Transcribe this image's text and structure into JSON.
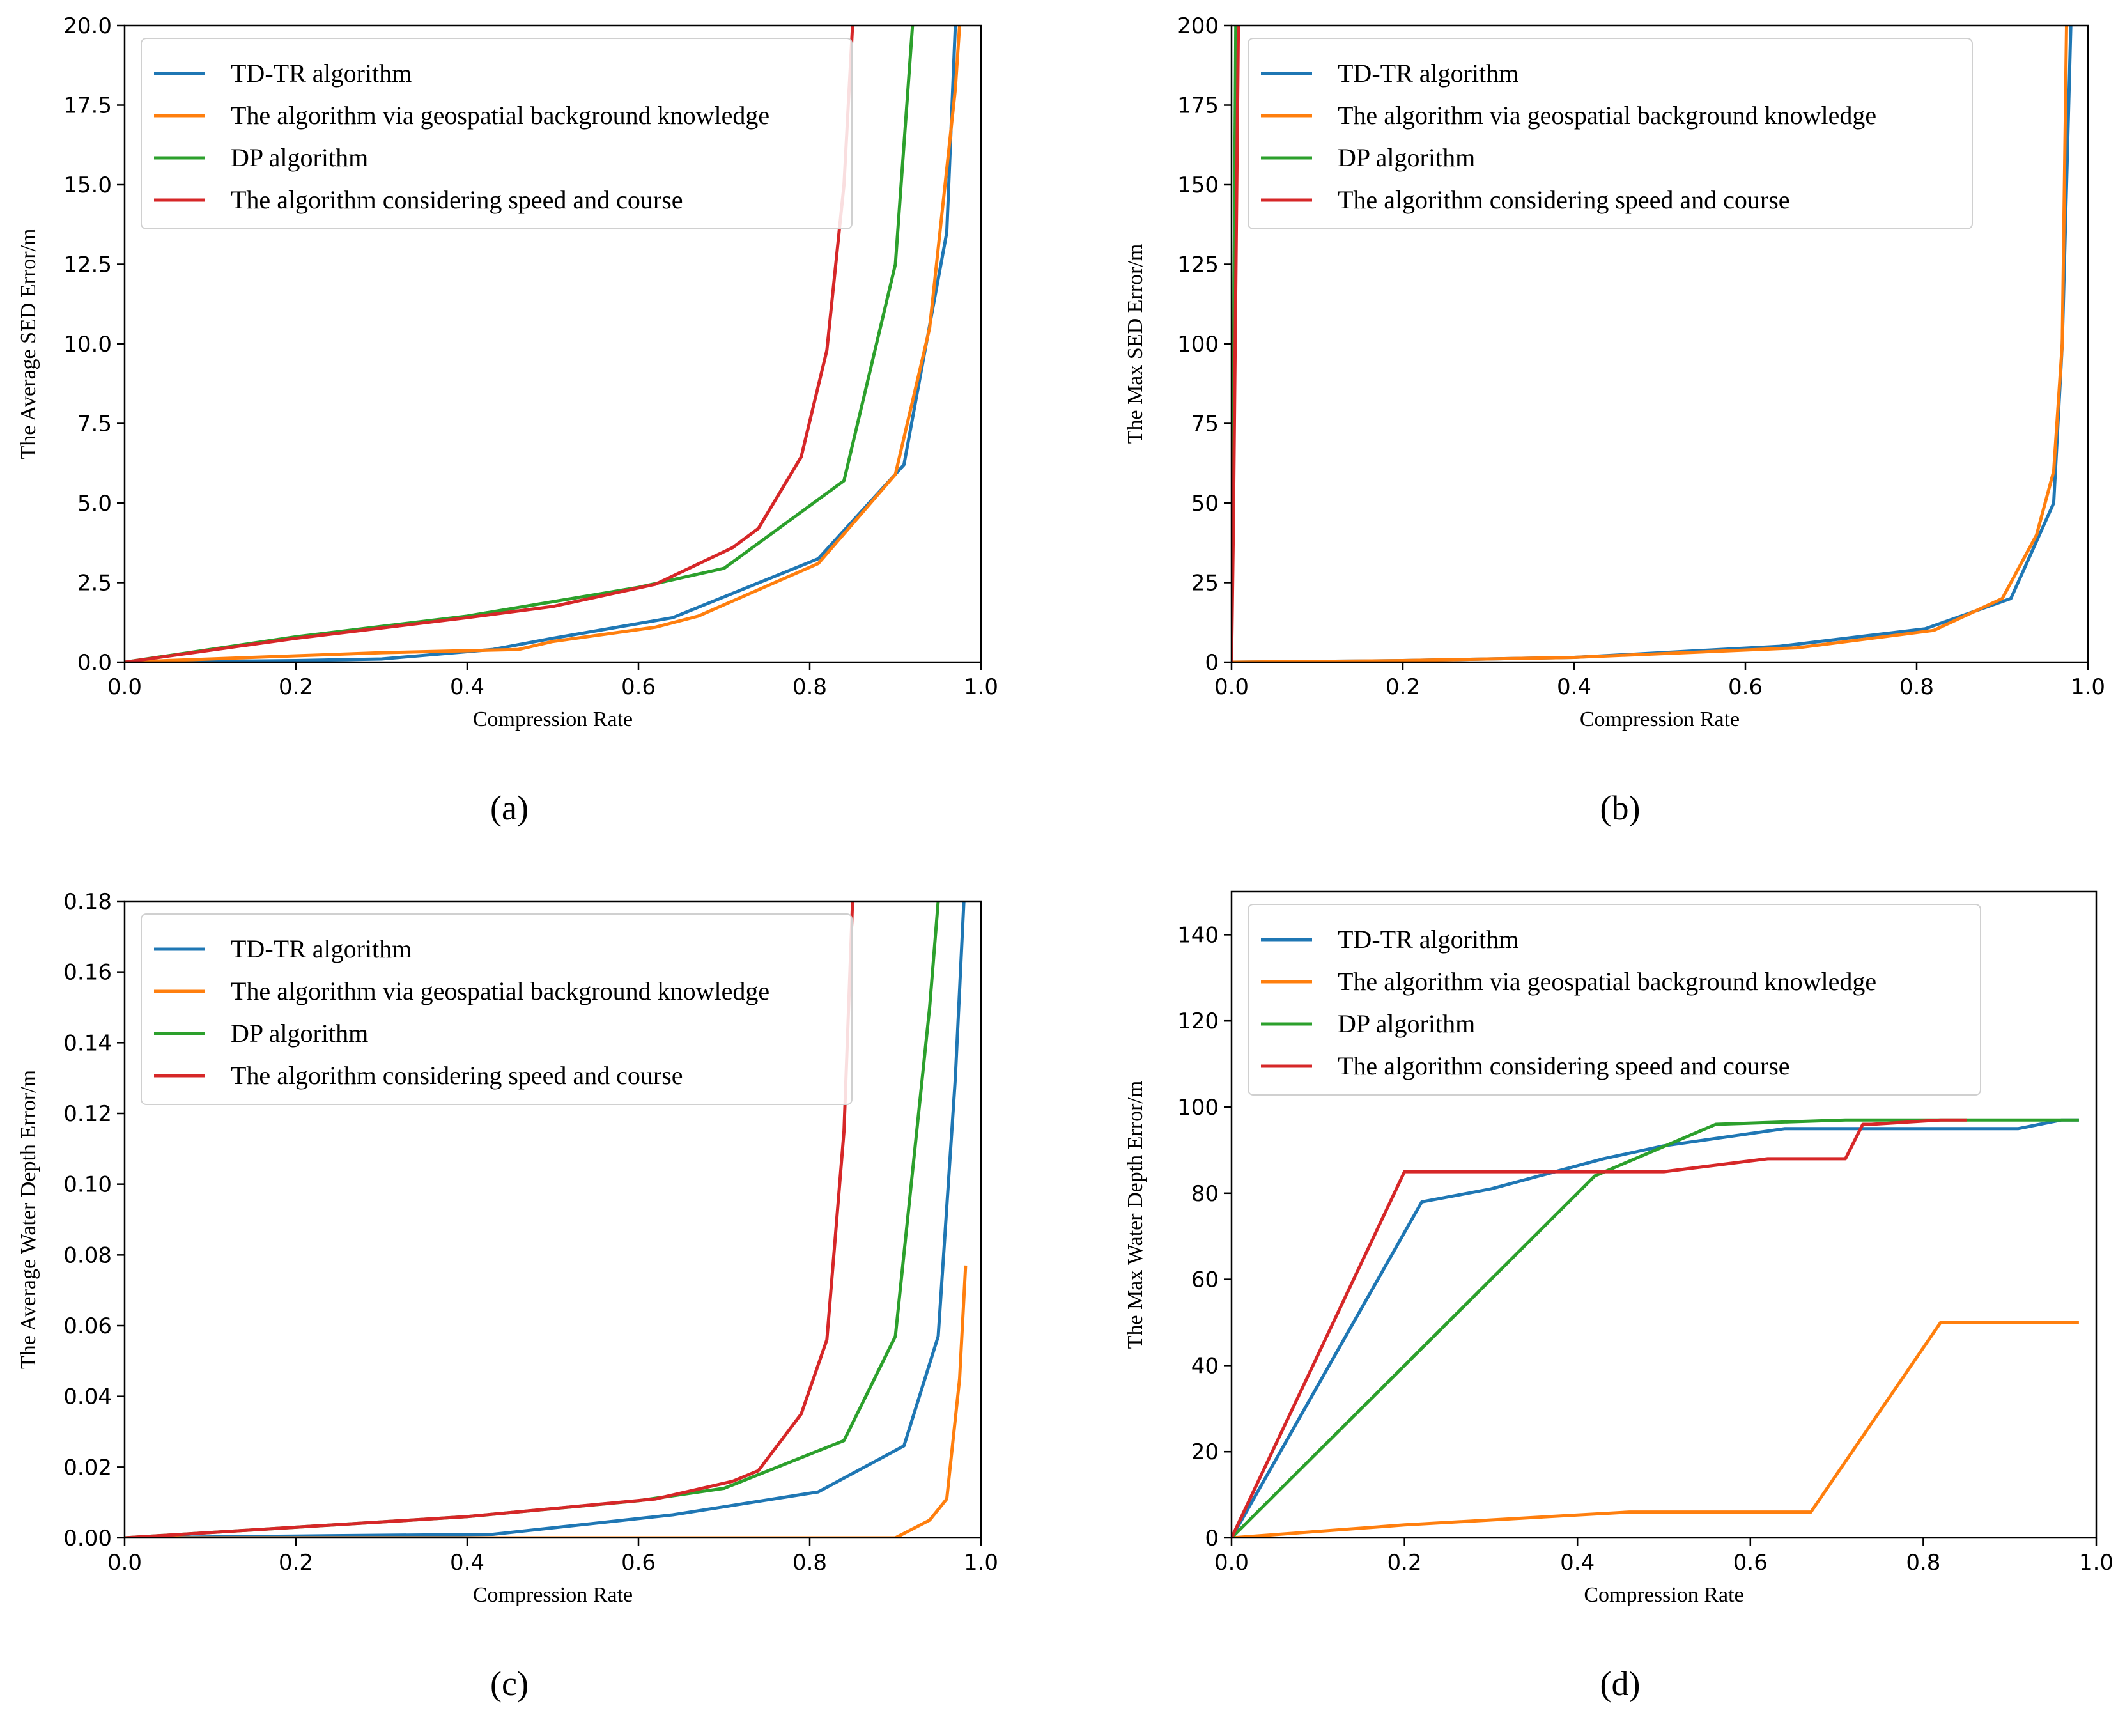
{
  "colors": {
    "td_tr": "#1f77b4",
    "geo": "#ff7f0e",
    "dp": "#2ca02c",
    "speed": "#d62728"
  },
  "legend_labels": [
    "TD-TR algorithm",
    "The algorithm via geospatial background knowledge",
    "DP algorithm",
    "The algorithm considering speed and course"
  ],
  "chart_data": [
    {
      "id": "a",
      "panel_label": "(a)",
      "type": "line",
      "xlabel": "Compression Rate",
      "ylabel": "The Average SED Error/m",
      "xlim": [
        0,
        1.0
      ],
      "ylim": [
        0,
        20.0
      ],
      "xticks": [
        "0.0",
        "0.2",
        "0.4",
        "0.6",
        "0.8",
        "1.0"
      ],
      "yticks": [
        "0.0",
        "2.5",
        "5.0",
        "7.5",
        "10.0",
        "12.5",
        "15.0",
        "17.5",
        "20.0"
      ],
      "legend_position": "top-left",
      "series": [
        {
          "name": "TD-TR algorithm",
          "color_key": "td_tr",
          "x": [
            0,
            0.2,
            0.3,
            0.43,
            0.5,
            0.64,
            0.81,
            0.91,
            0.96,
            0.97
          ],
          "y": [
            0,
            0.05,
            0.1,
            0.4,
            0.75,
            1.4,
            3.25,
            6.2,
            13.5,
            20.0
          ]
        },
        {
          "name": "The algorithm via geospatial background knowledge",
          "color_key": "geo",
          "x": [
            0,
            0.2,
            0.3,
            0.46,
            0.5,
            0.62,
            0.67,
            0.81,
            0.9,
            0.94,
            0.97,
            0.975
          ],
          "y": [
            0,
            0.2,
            0.3,
            0.4,
            0.65,
            1.1,
            1.45,
            3.1,
            5.9,
            10.5,
            18.0,
            20.0
          ]
        },
        {
          "name": "DP algorithm",
          "color_key": "dp",
          "x": [
            0,
            0.2,
            0.4,
            0.6,
            0.7,
            0.84,
            0.9,
            0.92
          ],
          "y": [
            0,
            0.8,
            1.45,
            2.35,
            2.95,
            5.7,
            12.5,
            20.0
          ]
        },
        {
          "name": "The algorithm considering speed and course",
          "color_key": "speed",
          "x": [
            0,
            0.2,
            0.4,
            0.5,
            0.62,
            0.71,
            0.74,
            0.79,
            0.82,
            0.84,
            0.85
          ],
          "y": [
            0,
            0.75,
            1.4,
            1.75,
            2.45,
            3.6,
            4.2,
            6.45,
            9.8,
            15.0,
            20.0
          ]
        }
      ]
    },
    {
      "id": "b",
      "panel_label": "(b)",
      "type": "line",
      "xlabel": "Compression Rate",
      "ylabel": "The Max SED Error/m",
      "xlim": [
        0,
        1.0
      ],
      "ylim": [
        0,
        200
      ],
      "xticks": [
        "0.0",
        "0.2",
        "0.4",
        "0.6",
        "0.8",
        "1.0"
      ],
      "yticks": [
        "0",
        "25",
        "50",
        "75",
        "100",
        "125",
        "150",
        "175",
        "200"
      ],
      "legend_position": "top-left",
      "series": [
        {
          "name": "TD-TR algorithm",
          "color_key": "td_tr",
          "x": [
            0,
            0.2,
            0.4,
            0.64,
            0.81,
            0.91,
            0.96,
            0.97,
            0.98
          ],
          "y": [
            0,
            0.5,
            1.5,
            5.0,
            10.5,
            20.0,
            50.0,
            100.0,
            200.0
          ]
        },
        {
          "name": "The algorithm via geospatial background knowledge",
          "color_key": "geo",
          "x": [
            0,
            0.2,
            0.4,
            0.66,
            0.82,
            0.9,
            0.94,
            0.96,
            0.97,
            0.975
          ],
          "y": [
            0,
            0.5,
            1.5,
            4.5,
            10.0,
            20.0,
            40.0,
            60.0,
            100.0,
            200.0
          ]
        },
        {
          "name": "DP algorithm",
          "color_key": "dp",
          "x": [
            0,
            0.005
          ],
          "y": [
            0,
            200
          ]
        },
        {
          "name": "The algorithm considering speed and course",
          "color_key": "speed",
          "x": [
            0,
            0.002,
            0.008
          ],
          "y": [
            0,
            40,
            200
          ]
        }
      ]
    },
    {
      "id": "c",
      "panel_label": "(c)",
      "type": "line",
      "xlabel": "Compression Rate",
      "ylabel": "The Average Water Depth Error/m",
      "xlim": [
        0,
        1.0
      ],
      "ylim": [
        0,
        0.18
      ],
      "xticks": [
        "0.0",
        "0.2",
        "0.4",
        "0.6",
        "0.8",
        "1.0"
      ],
      "yticks": [
        "0.00",
        "0.02",
        "0.04",
        "0.06",
        "0.08",
        "0.10",
        "0.12",
        "0.14",
        "0.16",
        "0.18"
      ],
      "legend_position": "top-left",
      "series": [
        {
          "name": "TD-TR algorithm",
          "color_key": "td_tr",
          "x": [
            0,
            0.2,
            0.43,
            0.64,
            0.81,
            0.91,
            0.95,
            0.97,
            0.98
          ],
          "y": [
            0,
            0.0005,
            0.001,
            0.0065,
            0.013,
            0.026,
            0.057,
            0.13,
            0.18
          ]
        },
        {
          "name": "The algorithm via geospatial background knowledge",
          "color_key": "geo",
          "x": [
            0,
            0.5,
            0.9,
            0.94,
            0.96,
            0.975,
            0.982
          ],
          "y": [
            0,
            0.0,
            0.0,
            0.005,
            0.011,
            0.045,
            0.077
          ]
        },
        {
          "name": "DP algorithm",
          "color_key": "dp",
          "x": [
            0,
            0.2,
            0.4,
            0.6,
            0.7,
            0.84,
            0.9,
            0.94,
            0.95
          ],
          "y": [
            0,
            0.003,
            0.006,
            0.0105,
            0.014,
            0.0275,
            0.057,
            0.15,
            0.18
          ]
        },
        {
          "name": "The algorithm considering speed and course",
          "color_key": "speed",
          "x": [
            0,
            0.2,
            0.4,
            0.62,
            0.71,
            0.74,
            0.79,
            0.82,
            0.84,
            0.85
          ],
          "y": [
            0,
            0.003,
            0.006,
            0.011,
            0.016,
            0.019,
            0.035,
            0.056,
            0.115,
            0.18
          ]
        }
      ]
    },
    {
      "id": "d",
      "panel_label": "(d)",
      "type": "line",
      "xlabel": "Compression Rate",
      "ylabel": "The Max Water Depth Error/m",
      "xlim": [
        0,
        1.0
      ],
      "ylim": [
        0,
        150
      ],
      "xticks": [
        "0.0",
        "0.2",
        "0.4",
        "0.6",
        "0.8",
        "1.0"
      ],
      "yticks": [
        "0",
        "20",
        "40",
        "60",
        "80",
        "100",
        "120",
        "140"
      ],
      "legend_position": "top-left",
      "series": [
        {
          "name": "TD-TR algorithm",
          "color_key": "td_tr",
          "x": [
            0,
            0.22,
            0.3,
            0.43,
            0.5,
            0.64,
            0.75,
            0.91,
            0.96,
            0.98
          ],
          "y": [
            0,
            78,
            81,
            88,
            91,
            95,
            95,
            95,
            97,
            97
          ]
        },
        {
          "name": "The algorithm via geospatial background knowledge",
          "color_key": "geo",
          "x": [
            0,
            0.2,
            0.46,
            0.67,
            0.82,
            0.98
          ],
          "y": [
            0,
            3,
            6,
            6,
            50,
            50
          ]
        },
        {
          "name": "DP algorithm",
          "color_key": "dp",
          "x": [
            0,
            0.42,
            0.56,
            0.71,
            0.91,
            0.98
          ],
          "y": [
            0,
            84,
            96,
            97,
            97,
            97
          ]
        },
        {
          "name": "The algorithm considering speed and course",
          "color_key": "speed",
          "x": [
            0,
            0.2,
            0.43,
            0.5,
            0.62,
            0.71,
            0.73,
            0.74,
            0.82,
            0.85
          ],
          "y": [
            0,
            85,
            85,
            85,
            88,
            88,
            96,
            96,
            97,
            97
          ]
        }
      ]
    }
  ]
}
